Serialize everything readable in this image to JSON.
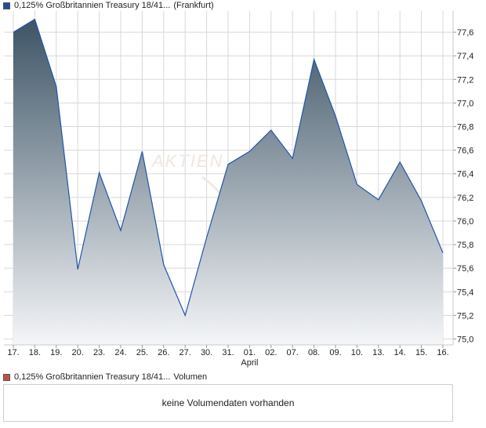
{
  "price_legend": {
    "color": "#1f4e96",
    "name": "0,125% Großbritannien Treasury 18/41...",
    "exchange": "(Frankfurt)"
  },
  "volume_legend": {
    "color": "#c0504d",
    "name": "0,125% Großbritannien Treasury 18/41...",
    "label": "Volumen"
  },
  "volume_panel": {
    "message": "keine Volumendaten vorhanden"
  },
  "watermark": "AKTIEN",
  "chart_data": {
    "type": "area",
    "x": [
      "17.",
      "18.",
      "19.",
      "20.",
      "23.",
      "24.",
      "25.",
      "26.",
      "27.",
      "30.",
      "31.",
      "01.",
      "02.",
      "07.",
      "08.",
      "09.",
      "10.",
      "13.",
      "14.",
      "15.",
      "16."
    ],
    "x_sublabels": {
      "11": "April"
    },
    "values": [
      77.6,
      77.71,
      77.14,
      75.59,
      76.41,
      75.92,
      76.59,
      75.63,
      75.2,
      75.86,
      76.48,
      76.59,
      76.77,
      76.53,
      77.37,
      76.89,
      76.31,
      76.18,
      76.5,
      76.17,
      75.73
    ],
    "ylim": [
      74.95,
      77.78
    ],
    "yticks": [
      "75,0",
      "75,2",
      "75,4",
      "75,6",
      "75,8",
      "76,0",
      "76,2",
      "76,4",
      "76,6",
      "76,8",
      "77,0",
      "77,2",
      "77,4",
      "77,6"
    ],
    "grid": true,
    "colors": {
      "line": "#2255aa",
      "fill_top": "#3d5466",
      "fill_bottom": "#f5f6f8",
      "grid": "#d8d8d8",
      "axis": "#c8c8c8"
    }
  }
}
